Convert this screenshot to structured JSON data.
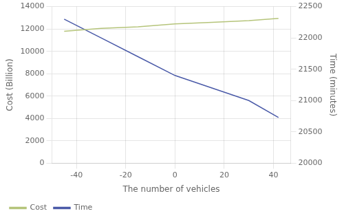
{
  "chart_data": {
    "type": "line",
    "xlabel": "The number of vehicles",
    "ylabel": "Cost (Billion)",
    "y2label": "Time (minutes)",
    "x": [
      -45,
      -30,
      -15,
      0,
      15,
      30,
      42
    ],
    "series": [
      {
        "name": "Cost",
        "color": "#b5c47a",
        "values": [
          11800,
          12050,
          12200,
          12450,
          12600,
          12750,
          12950
        ]
      },
      {
        "name": "Time",
        "color": "#4a5aa8",
        "values": [
          22300,
          22000,
          21700,
          21400,
          21200,
          21000,
          20730
        ],
        "axis": "y2"
      }
    ],
    "xlim": [
      -50,
      47
    ],
    "xticks": [
      -40,
      -20,
      0,
      20,
      40
    ],
    "ylim": [
      0,
      14000
    ],
    "yticks": [
      0,
      2000,
      4000,
      6000,
      8000,
      10000,
      12000,
      14000
    ],
    "y2lim": [
      20000,
      22500
    ],
    "y2ticks": [
      20000,
      20500,
      21000,
      21500,
      22000,
      22500
    ],
    "grid": true,
    "legend": "lower left"
  }
}
